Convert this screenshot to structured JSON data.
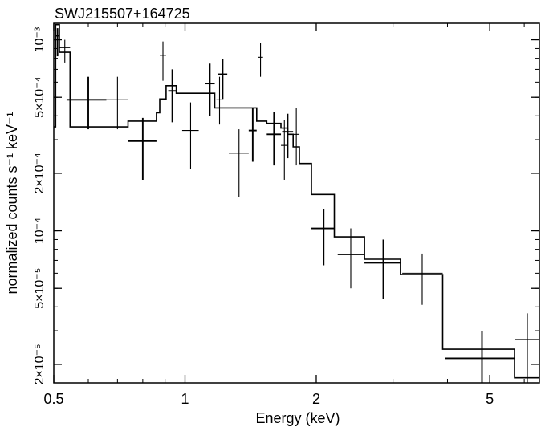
{
  "chart_data": {
    "type": "scatter",
    "title": "SWJ215507+164725",
    "xlabel": "Energy (keV)",
    "ylabel": "normalized counts s⁻¹ keV⁻¹",
    "x_scale": "log",
    "y_scale": "log",
    "xlim": [
      0.5,
      6.5
    ],
    "ylim": [
      1.6e-05,
      0.00122
    ],
    "grid": false,
    "x_ticks": [
      {
        "value": 0.5,
        "label": "0.5"
      },
      {
        "value": 1,
        "label": "1"
      },
      {
        "value": 2,
        "label": "2"
      },
      {
        "value": 5,
        "label": "5"
      }
    ],
    "y_ticks": [
      {
        "value": 2e-05,
        "label": "2×10⁻⁵"
      },
      {
        "value": 5e-05,
        "label": "5×10⁻⁵"
      },
      {
        "value": 0.0001,
        "label": "10⁻⁴"
      },
      {
        "value": 0.0002,
        "label": "2×10⁻⁴"
      },
      {
        "value": 0.0005,
        "label": "5×10⁻⁴"
      },
      {
        "value": 0.001,
        "label": "10⁻³"
      }
    ],
    "series": [
      {
        "kind": "data_points",
        "points": [
          {
            "x": 0.51,
            "xlo": 0.505,
            "xhi": 0.515,
            "y": 0.00105,
            "ylo": 0.00082,
            "yhi": 0.00115
          },
          {
            "x": 0.53,
            "xlo": 0.515,
            "xhi": 0.545,
            "y": 0.00091,
            "ylo": 0.00076,
            "yhi": 0.001
          },
          {
            "x": 0.6,
            "xlo": 0.535,
            "xhi": 0.66,
            "y": 0.000485,
            "ylo": 0.00034,
            "yhi": 0.00064
          },
          {
            "x": 0.7,
            "xlo": 0.66,
            "xhi": 0.74,
            "y": 0.000485,
            "ylo": 0.00034,
            "yhi": 0.00064
          },
          {
            "x": 0.8,
            "xlo": 0.74,
            "xhi": 0.86,
            "y": 0.000295,
            "ylo": 0.000185,
            "yhi": 0.00039
          },
          {
            "x": 0.89,
            "xlo": 0.875,
            "xhi": 0.905,
            "y": 0.00083,
            "ylo": 0.00061,
            "yhi": 0.00098
          },
          {
            "x": 0.935,
            "xlo": 0.915,
            "xhi": 0.955,
            "y": 0.00054,
            "ylo": 0.00037,
            "yhi": 0.0007
          },
          {
            "x": 1.03,
            "xlo": 0.985,
            "xhi": 1.075,
            "y": 0.000335,
            "ylo": 0.00021,
            "yhi": 0.00047
          },
          {
            "x": 1.14,
            "xlo": 1.11,
            "xhi": 1.17,
            "y": 0.00059,
            "ylo": 0.0004,
            "yhi": 0.00075
          },
          {
            "x": 1.2,
            "xlo": 1.18,
            "xhi": 1.22,
            "y": 0.000485,
            "ylo": 0.00036,
            "yhi": 0.00064
          },
          {
            "x": 1.22,
            "xlo": 1.19,
            "xhi": 1.25,
            "y": 0.00066,
            "ylo": 0.00049,
            "yhi": 0.00079
          },
          {
            "x": 1.33,
            "xlo": 1.26,
            "xhi": 1.4,
            "y": 0.000255,
            "ylo": 0.00015,
            "yhi": 0.00034
          },
          {
            "x": 1.43,
            "xlo": 1.4,
            "xhi": 1.46,
            "y": 0.000335,
            "ylo": 0.00023,
            "yhi": 0.00044
          },
          {
            "x": 1.49,
            "xlo": 1.47,
            "xhi": 1.51,
            "y": 0.00081,
            "ylo": 0.00064,
            "yhi": 0.00096
          },
          {
            "x": 1.6,
            "xlo": 1.54,
            "xhi": 1.66,
            "y": 0.00032,
            "ylo": 0.00022,
            "yhi": 0.00042
          },
          {
            "x": 1.69,
            "xlo": 1.66,
            "xhi": 1.72,
            "y": 0.00028,
            "ylo": 0.000185,
            "yhi": 0.00038
          },
          {
            "x": 1.72,
            "xlo": 1.67,
            "xhi": 1.77,
            "y": 0.00033,
            "ylo": 0.00024,
            "yhi": 0.00041
          },
          {
            "x": 1.8,
            "xlo": 1.77,
            "xhi": 1.83,
            "y": 0.00032,
            "ylo": 0.00022,
            "yhi": 0.00044
          },
          {
            "x": 2.08,
            "xlo": 1.95,
            "xhi": 2.2,
            "y": 0.000103,
            "ylo": 6.6e-05,
            "yhi": 0.00013
          },
          {
            "x": 2.4,
            "xlo": 2.24,
            "xhi": 2.58,
            "y": 7.5e-05,
            "ylo": 5e-05,
            "yhi": 0.000103
          },
          {
            "x": 2.85,
            "xlo": 2.58,
            "xhi": 3.12,
            "y": 6.8e-05,
            "ylo": 4.4e-05,
            "yhi": 9e-05
          },
          {
            "x": 3.5,
            "xlo": 3.15,
            "xhi": 3.9,
            "y": 6e-05,
            "ylo": 4.1e-05,
            "yhi": 7.6e-05
          },
          {
            "x": 4.8,
            "xlo": 3.95,
            "xhi": 5.7,
            "y": 2.15e-05,
            "ylo": 1.6e-05,
            "yhi": 3e-05
          },
          {
            "x": 6.1,
            "xlo": 5.7,
            "xhi": 6.5,
            "y": 2.7e-05,
            "ylo": 1.6e-05,
            "yhi": 3.7e-05
          }
        ]
      },
      {
        "kind": "model_step",
        "edges": [
          0.5,
          0.505,
          0.515,
          0.545,
          0.66,
          0.74,
          0.86,
          0.875,
          0.905,
          0.955,
          1.075,
          1.17,
          1.26,
          1.4,
          1.46,
          1.54,
          1.66,
          1.72,
          1.77,
          1.83,
          1.95,
          2.2,
          2.58,
          3.12,
          3.9,
          5.7,
          6.5
        ],
        "values": [
          0.00035,
          0.0012,
          0.00086,
          0.00035,
          0.00035,
          0.000375,
          0.000415,
          0.00049,
          0.000575,
          0.000525,
          0.000525,
          0.00044,
          0.00044,
          0.00044,
          0.000375,
          0.000365,
          0.000345,
          0.00032,
          0.000275,
          0.000225,
          0.000155,
          9.3e-05,
          7.1e-05,
          5.9e-05,
          2.4e-05,
          1.7e-05
        ]
      }
    ]
  }
}
